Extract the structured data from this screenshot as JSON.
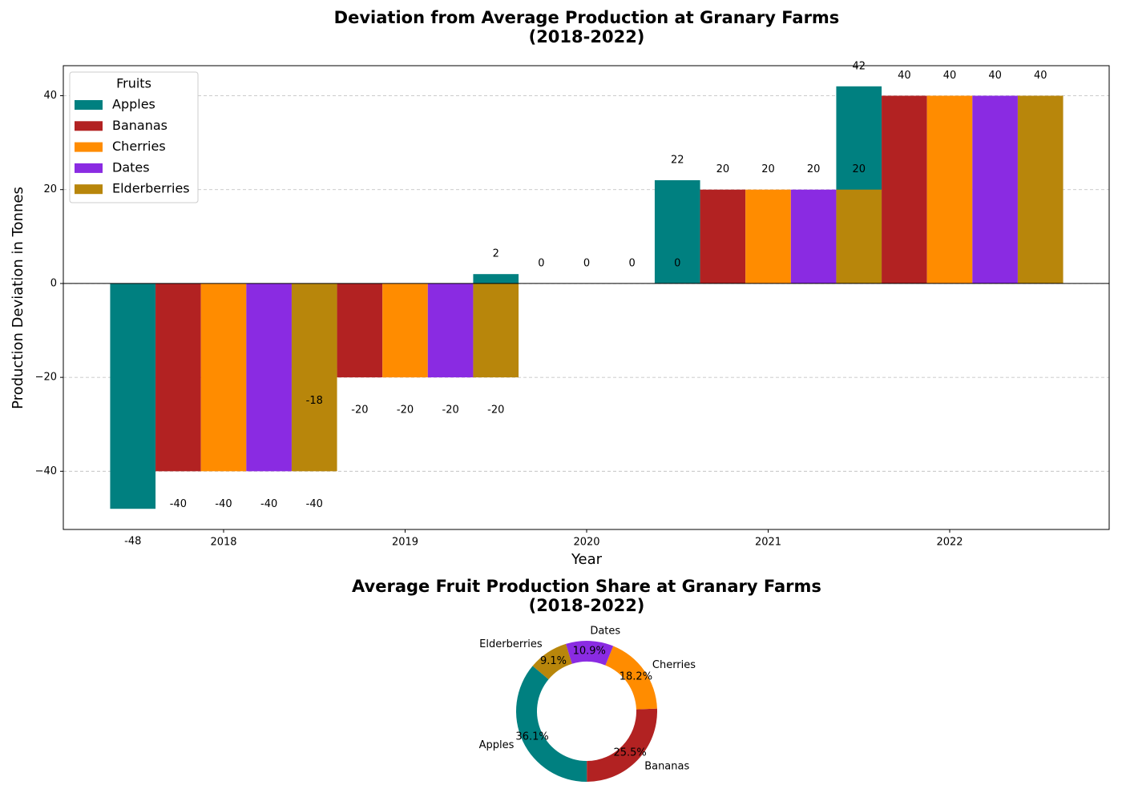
{
  "chart_data": [
    {
      "type": "bar",
      "title": "Deviation from Average Production at Granary Farms\n(2018-2022)",
      "xlabel": "Year",
      "ylabel": "Production Deviation in Tonnes",
      "categories": [
        "2018",
        "2019",
        "2020",
        "2021",
        "2022"
      ],
      "series": [
        {
          "name": "Apples",
          "color": "#008080",
          "values": [
            -48,
            -18,
            2,
            22,
            42
          ]
        },
        {
          "name": "Bananas",
          "color": "#b22222",
          "values": [
            -40,
            -20,
            0,
            20,
            40
          ]
        },
        {
          "name": "Cherries",
          "color": "#ff8c00",
          "values": [
            -40,
            -20,
            0,
            20,
            40
          ]
        },
        {
          "name": "Dates",
          "color": "#8a2be2",
          "values": [
            -40,
            -20,
            0,
            20,
            40
          ]
        },
        {
          "name": "Elderberries",
          "color": "#b8860b",
          "values": [
            -40,
            -20,
            0,
            20,
            40
          ]
        }
      ],
      "ylim": [
        -52.4,
        46.4
      ],
      "yticks": [
        -40,
        -20,
        0,
        20,
        40
      ],
      "grid": true,
      "legend_title": "Fruits",
      "legend": "upper left"
    },
    {
      "type": "pie",
      "title": "Average Fruit Production Share at Granary Farms\n(2018-2022)",
      "categories": [
        "Apples",
        "Bananas",
        "Cherries",
        "Dates",
        "Elderberries"
      ],
      "values": [
        36.1,
        25.5,
        18.2,
        10.9,
        9.1
      ],
      "value_labels": [
        "36.1%",
        "25.5%",
        "18.2%",
        "10.9%",
        "9.1%"
      ],
      "colors": [
        "#008080",
        "#b22222",
        "#ff8c00",
        "#8a2be2",
        "#b8860b"
      ],
      "startangle": 140,
      "donut": true
    }
  ]
}
